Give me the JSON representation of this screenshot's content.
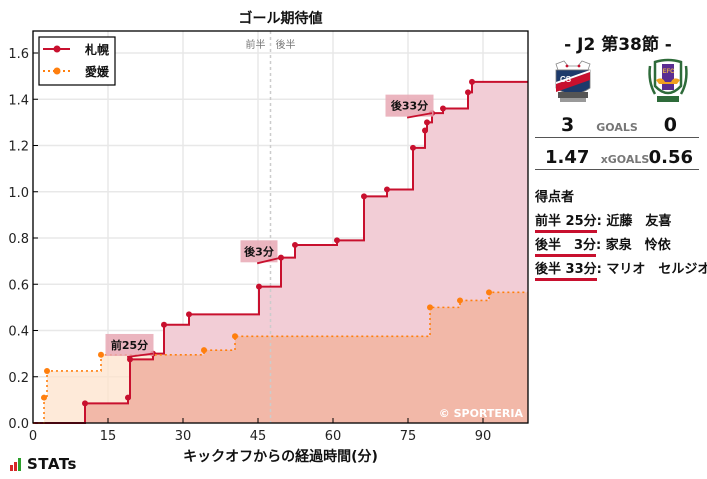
{
  "chart_data": {
    "type": "line",
    "subtype": "step-area",
    "title": "ゴール期待値",
    "xlabel": "キックオフからの経過時間(分)",
    "ylabel": "",
    "xlim": [
      0,
      99
    ],
    "ylim": [
      0,
      1.7
    ],
    "xticks": [
      0,
      15,
      30,
      45,
      60,
      75,
      90
    ],
    "yticks": [
      0.0,
      0.2,
      0.4,
      0.6,
      0.8,
      1.0,
      1.2,
      1.4,
      1.6
    ],
    "ytick_labels": [
      "0.0",
      "0.2",
      "0.4",
      "0.6",
      "0.8",
      "1.0",
      "1.2",
      "1.4",
      "1.6"
    ],
    "grid": true,
    "halftime_x": 47.5,
    "halftime_labels": [
      "前半",
      "後半"
    ],
    "legend_position": "upper left",
    "watermark": "© SPORTERIA",
    "series": [
      {
        "name": "札幌",
        "color": "#c8102e",
        "fill": "#f2cdd6",
        "line_style": "solid",
        "points": [
          [
            10.4,
            0.085
          ],
          [
            19.0,
            0.11
          ],
          [
            19.4,
            0.275
          ],
          [
            24.0,
            0.3
          ],
          [
            26.2,
            0.425
          ],
          [
            31.2,
            0.47
          ],
          [
            45.2,
            0.59
          ],
          [
            49.6,
            0.715
          ],
          [
            52.4,
            0.77
          ],
          [
            60.8,
            0.79
          ],
          [
            66.2,
            0.98
          ],
          [
            70.8,
            1.01
          ],
          [
            76.0,
            1.19
          ],
          [
            78.4,
            1.265
          ],
          [
            78.8,
            1.3
          ],
          [
            79.8,
            1.34
          ],
          [
            82.0,
            1.36
          ],
          [
            87.0,
            1.43
          ],
          [
            87.8,
            1.475
          ]
        ],
        "final": 1.47
      },
      {
        "name": "愛媛",
        "color": "#ff7f0e",
        "fill": "#fde3cc",
        "line_style": "dotted",
        "points": [
          [
            2.2,
            0.11
          ],
          [
            2.8,
            0.225
          ],
          [
            13.6,
            0.295
          ],
          [
            34.2,
            0.315
          ],
          [
            40.4,
            0.375
          ],
          [
            79.4,
            0.5
          ],
          [
            85.4,
            0.53
          ],
          [
            91.2,
            0.565
          ]
        ],
        "final": 0.56
      }
    ],
    "annotations": [
      {
        "label": "前25分",
        "box_x": 14.5,
        "box_y": 0.385,
        "target": [
          24.0,
          0.3
        ]
      },
      {
        "label": "後3分",
        "box_x": 41.5,
        "box_y": 0.79,
        "target": [
          49.6,
          0.715
        ]
      },
      {
        "label": "後33分",
        "box_x": 70.5,
        "box_y": 1.42,
        "target": [
          79.8,
          1.34
        ]
      }
    ]
  },
  "side": {
    "round": "- J2 第38節 -",
    "home": {
      "name": "札幌",
      "goals": "3",
      "xgoals": "1.47"
    },
    "away": {
      "name": "愛媛",
      "goals": "0",
      "xgoals": "0.56"
    },
    "goals_label": "GOALS",
    "xgoals_label": "xGOALS",
    "scorers_title": "得点者",
    "scorers": [
      {
        "time": "前半 25分",
        "sep": ":",
        "name": " 近藤　友喜"
      },
      {
        "time": "後半　3分",
        "sep": ":",
        "name": " 家泉　怜依"
      },
      {
        "time": "後半 33分",
        "sep": ":",
        "name": " マリオ　セルジオ"
      }
    ]
  },
  "footer": {
    "brand": "STATs",
    "brand_colors": [
      "#d62728",
      "#d62728",
      "#2ca02c"
    ]
  }
}
